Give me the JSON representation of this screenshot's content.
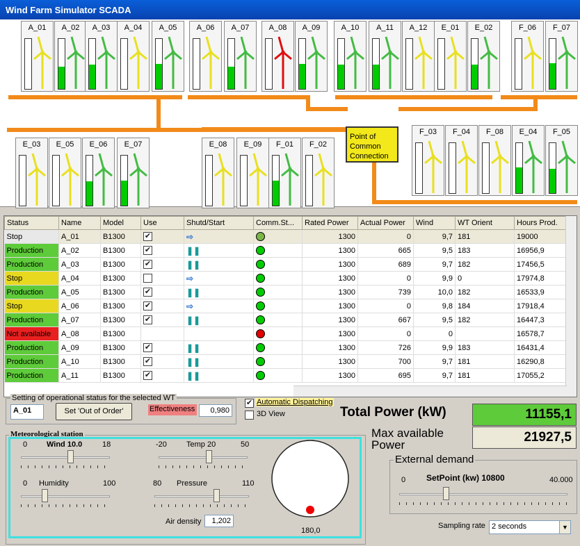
{
  "window": {
    "title": "Wind Farm Simulator SCADA"
  },
  "pcc": {
    "label": "Point of Common Connection"
  },
  "turbines": [
    {
      "name": "A_01",
      "level": 0.0,
      "color": "yellow"
    },
    {
      "name": "A_02",
      "level": 0.45,
      "color": "green"
    },
    {
      "name": "A_03",
      "level": 0.48,
      "color": "green"
    },
    {
      "name": "A_04",
      "level": 0.0,
      "color": "yellow"
    },
    {
      "name": "A_05",
      "level": 0.5,
      "color": "green"
    },
    {
      "name": "A_06",
      "level": 0.0,
      "color": "yellow"
    },
    {
      "name": "A_07",
      "level": 0.45,
      "color": "green"
    },
    {
      "name": "A_08",
      "level": 0.0,
      "color": "red"
    },
    {
      "name": "A_09",
      "level": 0.5,
      "color": "green"
    },
    {
      "name": "A_10",
      "level": 0.48,
      "color": "green"
    },
    {
      "name": "A_11",
      "level": 0.48,
      "color": "green"
    },
    {
      "name": "A_12",
      "level": 0.0,
      "color": "yellow"
    },
    {
      "name": "E_01",
      "level": 0.0,
      "color": "yellow"
    },
    {
      "name": "E_02",
      "level": 0.48,
      "color": "green"
    },
    {
      "name": "F_06",
      "level": 0.0,
      "color": "yellow"
    },
    {
      "name": "F_07",
      "level": 0.52,
      "color": "green"
    },
    {
      "name": "E_03",
      "level": 0.0,
      "color": "yellow"
    },
    {
      "name": "E_05",
      "level": 0.0,
      "color": "yellow"
    },
    {
      "name": "E_06",
      "level": 0.48,
      "color": "green"
    },
    {
      "name": "E_07",
      "level": 0.5,
      "color": "green"
    },
    {
      "name": "E_08",
      "level": 0.0,
      "color": "yellow"
    },
    {
      "name": "E_09",
      "level": 0.0,
      "color": "yellow"
    },
    {
      "name": "F_01",
      "level": 0.5,
      "color": "green"
    },
    {
      "name": "F_02",
      "level": 0.0,
      "color": "yellow"
    },
    {
      "name": "F_03",
      "level": 0.0,
      "color": "yellow"
    },
    {
      "name": "F_04",
      "level": 0.0,
      "color": "yellow"
    },
    {
      "name": "F_08",
      "level": 0.0,
      "color": "yellow"
    },
    {
      "name": "E_04",
      "level": 0.52,
      "color": "green"
    },
    {
      "name": "F_05",
      "level": 0.48,
      "color": "green"
    }
  ],
  "table": {
    "headers": [
      "Status",
      "Name",
      "Model",
      "Use",
      "Shutd/Start",
      "Comm.St...",
      "Rated Power",
      "Actual Power",
      "Wind",
      "WT Orient",
      "Hours Prod."
    ],
    "rows": [
      {
        "status": "Stop",
        "statusColor": "#e8e8e8",
        "name": "A_01",
        "model": "B1300",
        "use": "✔",
        "act": "⇨",
        "comm": "#7ab648",
        "rated": "1300",
        "actual": "0",
        "wind": "9,7",
        "orient": "181",
        "hours": "19000"
      },
      {
        "status": "Production",
        "statusColor": "#5ecb3a",
        "name": "A_02",
        "model": "B1300",
        "use": "✔",
        "act": "❚❚",
        "comm": "#00cc00",
        "rated": "1300",
        "actual": "665",
        "wind": "9,5",
        "orient": "183",
        "hours": "16956,9"
      },
      {
        "status": "Production",
        "statusColor": "#5ecb3a",
        "name": "A_03",
        "model": "B1300",
        "use": "✔",
        "act": "❚❚",
        "comm": "#00cc00",
        "rated": "1300",
        "actual": "689",
        "wind": "9,7",
        "orient": "182",
        "hours": "17456,5"
      },
      {
        "status": "Stop",
        "statusColor": "#e8d820",
        "name": "A_04",
        "model": "B1300",
        "use": "",
        "act": "⇨",
        "comm": "#00cc00",
        "rated": "1300",
        "actual": "0",
        "wind": "9,9",
        "orient": "0",
        "hours": "17974,8"
      },
      {
        "status": "Production",
        "statusColor": "#5ecb3a",
        "name": "A_05",
        "model": "B1300",
        "use": "✔",
        "act": "❚❚",
        "comm": "#00cc00",
        "rated": "1300",
        "actual": "739",
        "wind": "10,0",
        "orient": "182",
        "hours": "16533,9"
      },
      {
        "status": "Stop",
        "statusColor": "#e8d820",
        "name": "A_06",
        "model": "B1300",
        "use": "✔",
        "act": "⇨",
        "comm": "#00cc00",
        "rated": "1300",
        "actual": "0",
        "wind": "9,8",
        "orient": "184",
        "hours": "17918,4"
      },
      {
        "status": "Production",
        "statusColor": "#5ecb3a",
        "name": "A_07",
        "model": "B1300",
        "use": "✔",
        "act": "❚❚",
        "comm": "#00cc00",
        "rated": "1300",
        "actual": "667",
        "wind": "9,5",
        "orient": "182",
        "hours": "16447,3"
      },
      {
        "status": "Not available",
        "statusColor": "#e82020",
        "name": "A_08",
        "model": "B1300",
        "use": "",
        "act": "",
        "comm": "#e00000",
        "rated": "1300",
        "actual": "0",
        "wind": "0",
        "orient": "",
        "hours": "16578,7"
      },
      {
        "status": "Production",
        "statusColor": "#5ecb3a",
        "name": "A_09",
        "model": "B1300",
        "use": "✔",
        "act": "❚❚",
        "comm": "#00cc00",
        "rated": "1300",
        "actual": "726",
        "wind": "9,9",
        "orient": "183",
        "hours": "16431,4"
      },
      {
        "status": "Production",
        "statusColor": "#5ecb3a",
        "name": "A_10",
        "model": "B1300",
        "use": "✔",
        "act": "❚❚",
        "comm": "#00cc00",
        "rated": "1300",
        "actual": "700",
        "wind": "9,7",
        "orient": "181",
        "hours": "16290,8"
      },
      {
        "status": "Production",
        "statusColor": "#5ecb3a",
        "name": "A_11",
        "model": "B1300",
        "use": "✔",
        "act": "❚❚",
        "comm": "#00cc00",
        "rated": "1300",
        "actual": "695",
        "wind": "9,7",
        "orient": "181",
        "hours": "17055,2"
      }
    ]
  },
  "opstatus": {
    "group_label": "Setting of operational status for the selected WT",
    "selected": "A_01",
    "out_of_order_label": "Set 'Out of Order'",
    "effectiveness_label": "Effectiveness",
    "effectiveness": "0,980"
  },
  "options": {
    "auto_dispatch": "Automatic Dispatching",
    "view3d": "3D View"
  },
  "power": {
    "total_label": "Total Power (kW)",
    "total": "11155,1",
    "max_label_1": "Max available",
    "max_label_2": "Power",
    "max": "21927,5"
  },
  "met": {
    "label": "Meteorological station",
    "wind_label": "Wind 10.0",
    "wind_min": "0",
    "wind_max": "18",
    "wind_level": 0.56,
    "temp_label": "Temp 20",
    "temp_min": "-20",
    "temp_max": "50",
    "temp_level": 0.57,
    "hum_label": "Humidity",
    "hum_min": "0",
    "hum_max": "100",
    "hum_level": 0.25,
    "press_label": "Pressure",
    "press_min": "80",
    "press_max": "110",
    "press_level": 0.67,
    "air_label": "Air density",
    "air": "1,202",
    "dir": "180,0"
  },
  "demand": {
    "label": "External demand",
    "setpoint_label": "SetPoint (kw) 10800",
    "min": "0",
    "max": "40.000",
    "level": 0.27,
    "sampling_label": "Sampling rate",
    "sampling": "2 seconds"
  }
}
